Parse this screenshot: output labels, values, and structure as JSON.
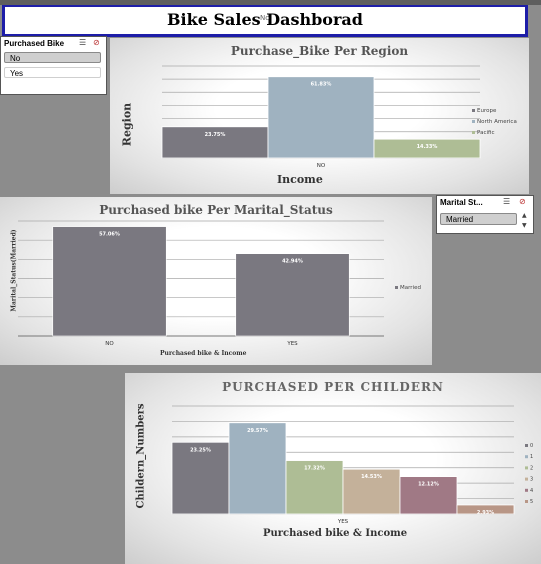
{
  "header": {
    "title": "Bike Sales Dashborad",
    "overlay_text": "No"
  },
  "slicer_purchased": {
    "title": "Purchased Bike",
    "items": [
      {
        "label": "No",
        "selected": true
      },
      {
        "label": "Yes",
        "selected": false
      }
    ]
  },
  "slicer_marital": {
    "title": "Marital St...",
    "items": [
      {
        "label": "Married",
        "selected": true
      }
    ]
  },
  "icons": {
    "multiselect": "multi-select-icon",
    "clear_filter": "clear-filter-icon",
    "scroll_up": "scroll-up-icon",
    "scroll_down": "scroll-down-icon"
  },
  "chart_data": [
    {
      "type": "bar",
      "title": "Purchase_Bike Per Region",
      "xlabel": "Income",
      "ylabel": "Region",
      "categories": [
        "NO"
      ],
      "series": [
        {
          "name": "Europe",
          "values": [
            23.75
          ],
          "label": "23.75%",
          "color": "#7a7880"
        },
        {
          "name": "North America",
          "values": [
            61.83
          ],
          "label": "61.83%",
          "color": "#9fb2c0"
        },
        {
          "name": "Pacific",
          "values": [
            14.33
          ],
          "label": "14.33%",
          "color": "#aebd95"
        }
      ],
      "ylim": [
        0,
        70
      ],
      "grid": true,
      "legend": "right"
    },
    {
      "type": "bar",
      "title": "Purchased bike Per Marital_Status",
      "xlabel": "Purchased bike & Income",
      "ylabel": "Marital_Status(Married)",
      "categories": [
        "NO",
        "YES"
      ],
      "series": [
        {
          "name": "Married",
          "values": [
            57.06,
            42.94
          ],
          "labels": [
            "57.06%",
            "42.94%"
          ],
          "color": "#7a7880"
        }
      ],
      "ylim": [
        0,
        60
      ],
      "grid": true,
      "legend": "right"
    },
    {
      "type": "bar",
      "title": "PURCHASED PER CHILDERN",
      "xlabel": "Purchased bike & Income",
      "ylabel": "Childern_Numbers",
      "categories": [
        "YES"
      ],
      "series": [
        {
          "name": "0",
          "values": [
            23.25
          ],
          "label": "23.25%",
          "color": "#7a7880"
        },
        {
          "name": "1",
          "values": [
            29.57
          ],
          "label": "29.57%",
          "color": "#9fb2c0"
        },
        {
          "name": "2",
          "values": [
            17.32
          ],
          "label": "17.32%",
          "color": "#aebd95"
        },
        {
          "name": "3",
          "values": [
            14.53
          ],
          "label": "14.53%",
          "color": "#c4b19a"
        },
        {
          "name": "4",
          "values": [
            12.12
          ],
          "label": "12.12%",
          "color": "#a07985"
        },
        {
          "name": "5",
          "values": [
            2.93
          ],
          "label": "2.93%",
          "color": "#b89686"
        }
      ],
      "ylim": [
        0,
        35
      ],
      "grid": true,
      "legend": "right"
    }
  ]
}
